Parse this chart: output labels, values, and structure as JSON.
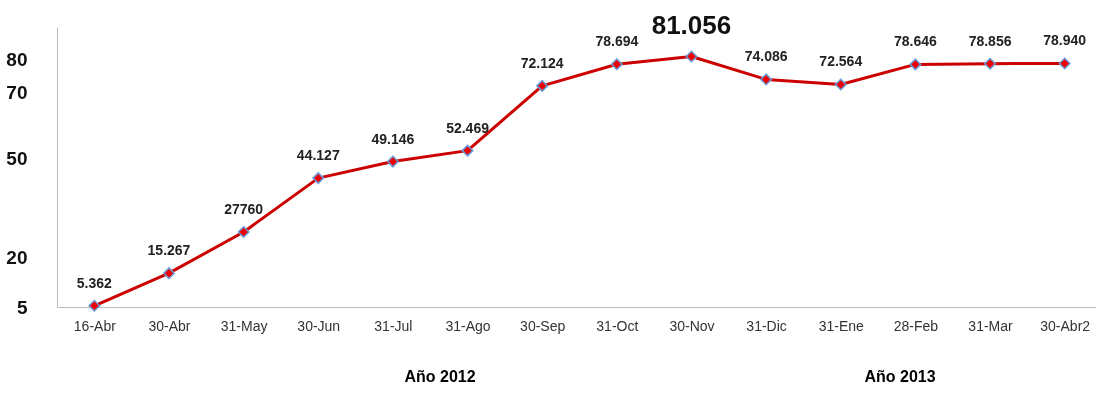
{
  "chart_data": {
    "type": "line",
    "categories": [
      "16-Abr",
      "30-Abr",
      "31-May",
      "30-Jun",
      "31-Jul",
      "31-Ago",
      "30-Sep",
      "31-Oct",
      "30-Nov",
      "31-Dic",
      "31-Ene",
      "28-Feb",
      "31-Mar",
      "30-Abr2"
    ],
    "series": [
      {
        "color": "#cc0000",
        "values": [
          5.362,
          15.267,
          27.76,
          44.127,
          49.146,
          52.469,
          72.124,
          78.694,
          81.056,
          74.086,
          72.564,
          78.646,
          78.856,
          78.94
        ],
        "value_labels": [
          "5.362",
          "15.267",
          null,
          "44.127",
          "49.146",
          "52.469",
          "72.124",
          "78.694",
          "81.056",
          "74.086",
          "72.564",
          "78.646",
          "78.856",
          "78.940"
        ]
      }
    ],
    "ylim": [
      5,
      90
    ],
    "yticks": [
      5,
      20,
      50,
      70,
      80
    ],
    "marker": "diamond",
    "line_style": "solid",
    "grid": false,
    "annotations": [
      {
        "text": "27760",
        "x": "31-May",
        "y": 27.76
      },
      "Año 2012",
      "Año 2013"
    ]
  }
}
